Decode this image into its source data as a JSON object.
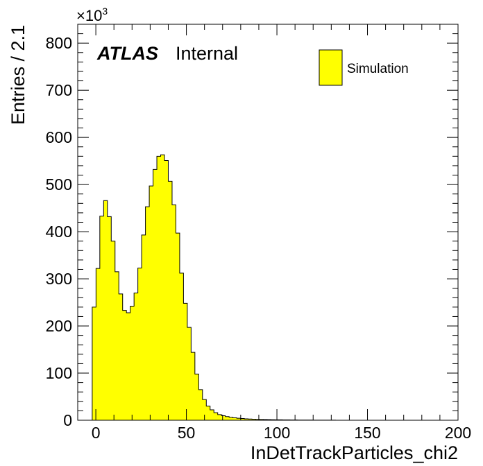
{
  "chart_data": {
    "type": "bar",
    "xlabel": "InDetTrackParticles_chi2",
    "ylabel": "Entries / 2.1",
    "y_multiplier": "×10",
    "y_multiplier_exp": "3",
    "xlim": [
      -10,
      200
    ],
    "ylim": [
      0,
      840
    ],
    "x_ticks": [
      0,
      50,
      100,
      150,
      200
    ],
    "y_ticks": [
      0,
      100,
      200,
      300,
      400,
      500,
      600,
      700,
      800
    ],
    "bin_width": 2.1,
    "bin_start": -2.0,
    "values": [
      240,
      322,
      433,
      466,
      432,
      380,
      315,
      268,
      233,
      228,
      242,
      270,
      323,
      393,
      453,
      497,
      532,
      560,
      563,
      551,
      507,
      457,
      397,
      312,
      248,
      197,
      144,
      98,
      65,
      44,
      30,
      22,
      16,
      12,
      9.5,
      7.8,
      6.3,
      5.2,
      4.3,
      3.6,
      3.0,
      2.6,
      2.2,
      1.9,
      1.6,
      1.4,
      1.2,
      1.1,
      0.95,
      0.85,
      0.75,
      0.66,
      0.58,
      0.5,
      0.44,
      0.39,
      0.34,
      0.3,
      0.26,
      0.22,
      0.19,
      0.16,
      0.13,
      0.1
    ],
    "legend": {
      "entries": [
        {
          "name": "Simulation",
          "color": "#ffff00"
        }
      ],
      "placement": "top-right"
    },
    "annotations": {
      "experiment": "ATLAS",
      "status": "Internal"
    },
    "fill_color": "#ffff00",
    "line_color": "#000000",
    "grid": false
  }
}
